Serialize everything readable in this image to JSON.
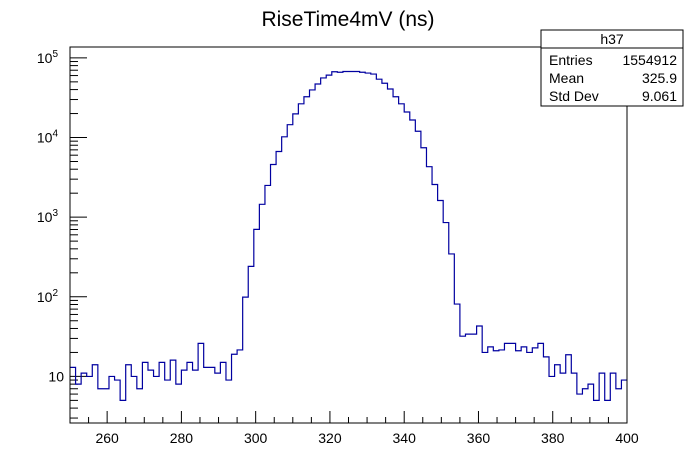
{
  "chart_data": {
    "type": "histogram",
    "title": "RiseTime4mV (ns)",
    "xlabel": "",
    "ylabel": "",
    "xlim": [
      250,
      400
    ],
    "ylim": [
      2.6,
      137000
    ],
    "yscale": "log",
    "bin_width": 1.5,
    "line_color": "#0000a0",
    "x_ticks": [
      "260",
      "280",
      "300",
      "320",
      "340",
      "360",
      "380",
      "400"
    ],
    "x_tick_values": [
      260,
      280,
      300,
      320,
      340,
      360,
      380,
      400
    ],
    "y_ticks": [
      {
        "value": 10,
        "base": "10",
        "exp": ""
      },
      {
        "value": 100,
        "base": "10",
        "exp": "2"
      },
      {
        "value": 1000,
        "base": "10",
        "exp": "3"
      },
      {
        "value": 10000,
        "base": "10",
        "exp": "4"
      },
      {
        "value": 100000,
        "base": "10",
        "exp": "5"
      }
    ],
    "values": [
      13,
      8,
      11,
      10,
      14,
      7,
      7,
      10,
      9,
      5,
      14,
      10,
      7,
      15,
      12,
      10,
      15,
      9,
      16,
      8,
      12,
      15,
      12,
      26,
      13,
      13,
      11,
      15,
      9,
      19,
      21.5,
      99,
      241,
      703,
      1450,
      2500,
      4580,
      6680,
      10200,
      14500,
      19800,
      26500,
      32500,
      39600,
      47000,
      56000,
      60800,
      67000,
      66000,
      67500,
      67500,
      67500,
      66000,
      64500,
      62600,
      54000,
      48000,
      40700,
      32500,
      26500,
      20900,
      16600,
      12000,
      7440,
      4300,
      2570,
      1620,
      855,
      345,
      81,
      32,
      34,
      34,
      43,
      20,
      23.5,
      21,
      21.5,
      26,
      26,
      21,
      23.5,
      20,
      22.8,
      26,
      17.6,
      10,
      14,
      11,
      18.7,
      11,
      6,
      7,
      8,
      5,
      11,
      5,
      11,
      7,
      9
    ],
    "stats": {
      "name": "h37",
      "rows": [
        {
          "label": "Entries",
          "value": "1554912"
        },
        {
          "label": "Mean",
          "value": "325.9"
        },
        {
          "label": "Std Dev",
          "value": "9.061"
        }
      ]
    }
  }
}
